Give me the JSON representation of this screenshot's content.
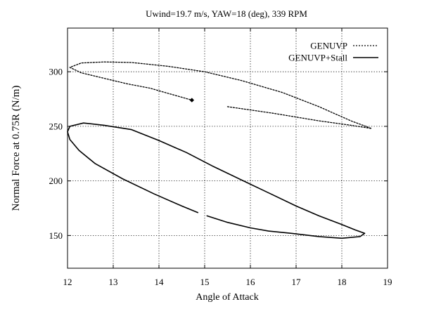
{
  "chart_data": {
    "type": "line",
    "title": "Uwind=19.7 m/s, YAW=18 (deg), 339 RPM",
    "xlabel": "Angle of Attack",
    "ylabel": "Normal Force at 0.75R  (N/m)",
    "xlim": [
      12,
      19
    ],
    "ylim": [
      120,
      340
    ],
    "xticks": [
      "12",
      "13",
      "14",
      "15",
      "16",
      "17",
      "18",
      "19"
    ],
    "yticks": [
      "150",
      "200",
      "250",
      "300"
    ],
    "grid": true,
    "legend_position": "top-right",
    "series": [
      {
        "name": "GENUVP",
        "line_style": "dotted",
        "color": "#000000",
        "segments": [
          [
            [
              15.5,
              268
            ],
            [
              16.5,
              262
            ],
            [
              17.5,
              255
            ],
            [
              18.2,
              251
            ],
            [
              18.65,
              248
            ],
            [
              18.2,
              255
            ],
            [
              17.5,
              268
            ],
            [
              16.7,
              281
            ],
            [
              15.8,
              292
            ],
            [
              15.0,
              300
            ],
            [
              14.2,
              305
            ],
            [
              13.4,
              308.5
            ],
            [
              12.8,
              309
            ],
            [
              12.3,
              308
            ],
            [
              12.05,
              304
            ],
            [
              12.3,
              299
            ],
            [
              12.8,
              294
            ],
            [
              13.3,
              289
            ],
            [
              13.8,
              285
            ],
            [
              14.3,
              279
            ],
            [
              14.72,
              274
            ]
          ]
        ],
        "end_marker": [
          14.72,
          274
        ]
      },
      {
        "name": "GENUVP+Stall",
        "line_style": "solid",
        "color": "#000000",
        "segments": [
          [
            [
              14.85,
              171
            ],
            [
              14.5,
              177
            ],
            [
              13.9,
              188
            ],
            [
              13.2,
              202
            ],
            [
              12.6,
              216
            ],
            [
              12.25,
              228
            ],
            [
              12.05,
              238
            ],
            [
              12.0,
              245
            ],
            [
              12.05,
              250
            ],
            [
              12.35,
              253
            ],
            [
              12.8,
              251
            ],
            [
              13.4,
              247
            ],
            [
              14.0,
              237
            ],
            [
              14.6,
              226
            ],
            [
              15.2,
              213
            ],
            [
              15.8,
              201
            ],
            [
              16.4,
              189
            ],
            [
              17.0,
              177
            ],
            [
              17.5,
              168
            ],
            [
              18.0,
              160
            ],
            [
              18.3,
              155
            ],
            [
              18.5,
              152
            ],
            [
              18.4,
              149
            ],
            [
              18.0,
              147.5
            ],
            [
              17.5,
              149
            ],
            [
              16.9,
              152
            ],
            [
              16.4,
              154
            ],
            [
              16.0,
              157
            ],
            [
              15.5,
              162
            ],
            [
              15.05,
              168
            ]
          ]
        ]
      }
    ]
  }
}
